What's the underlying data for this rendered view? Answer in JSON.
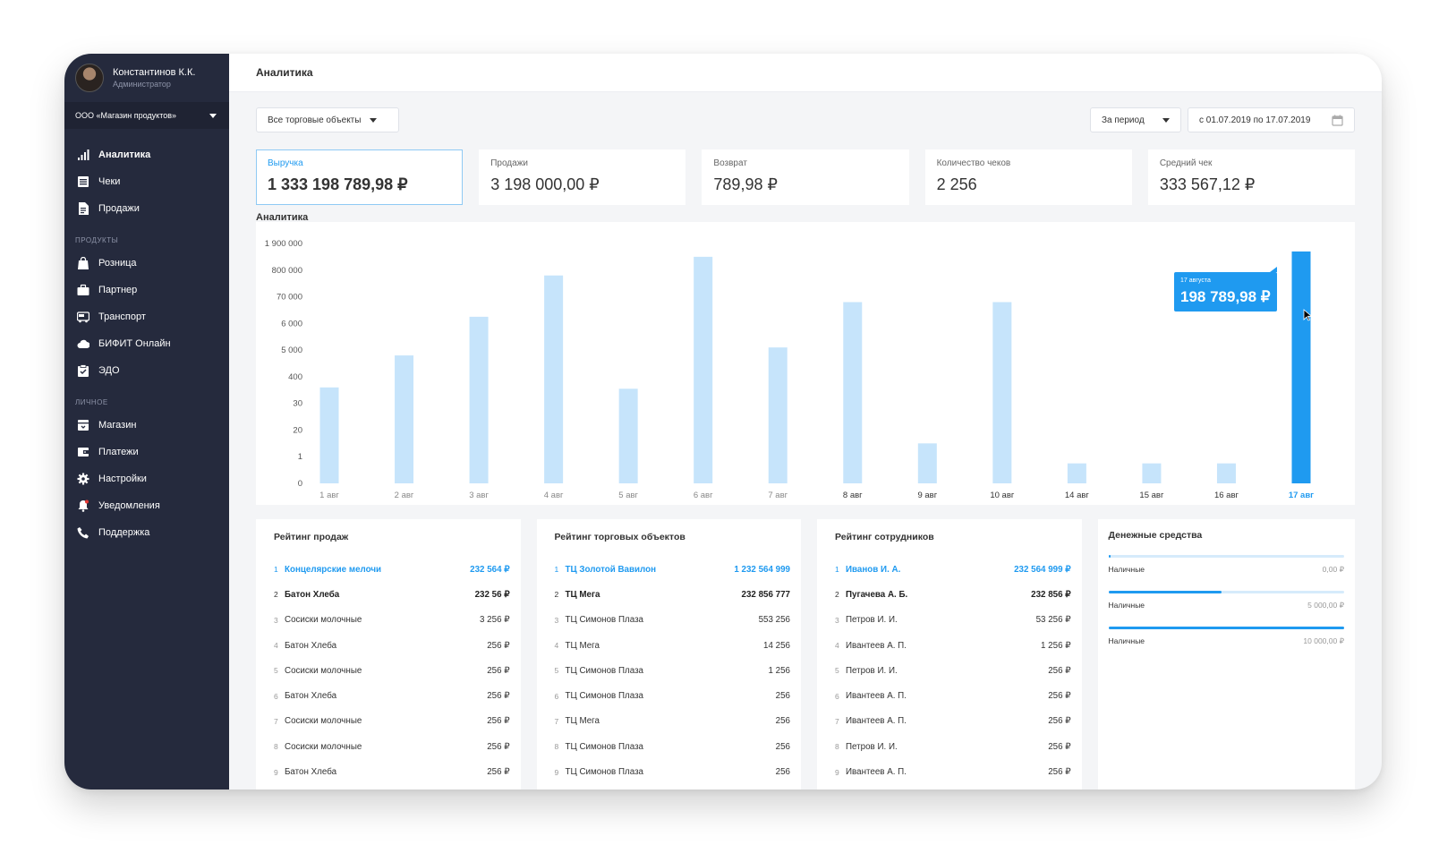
{
  "user": {
    "name": "Константинов К.К.",
    "role": "Администратор"
  },
  "org": "ООО «Магазин продуктов»",
  "nav_main": [
    {
      "label": "Аналитика",
      "icon": "bar-chart-icon"
    },
    {
      "label": "Чеки",
      "icon": "receipt-icon"
    },
    {
      "label": "Продажи",
      "icon": "document-icon"
    }
  ],
  "section_products": "ПРОДУКТЫ",
  "nav_products": [
    {
      "label": "Розница",
      "icon": "bag-icon"
    },
    {
      "label": "Партнер",
      "icon": "briefcase-icon"
    },
    {
      "label": "Транспорт",
      "icon": "bus-icon"
    },
    {
      "label": "БИФИТ Онлайн",
      "icon": "cloud-icon"
    },
    {
      "label": "ЭДО",
      "icon": "clipboard-check-icon"
    }
  ],
  "section_personal": "ЛИЧНОЕ",
  "nav_personal": [
    {
      "label": "Магазин",
      "icon": "store-icon"
    },
    {
      "label": "Платежи",
      "icon": "wallet-icon"
    },
    {
      "label": "Настройки",
      "icon": "gear-icon"
    },
    {
      "label": "Уведомления",
      "icon": "bell-icon"
    },
    {
      "label": "Поддержка",
      "icon": "phone-icon"
    }
  ],
  "header": {
    "title": "Аналитика"
  },
  "filters": {
    "objects": "Все торговые объекты",
    "period": "За период",
    "date_range": "с 01.07.2019 по 17.07.2019"
  },
  "kpis": [
    {
      "label": "Выручка",
      "value": "1 333 198 789,98 ₽"
    },
    {
      "label": "Продажи",
      "value": "3 198 000,00 ₽"
    },
    {
      "label": "Возврат",
      "value": "789,98 ₽"
    },
    {
      "label": "Количество чеков",
      "value": "2 256"
    },
    {
      "label": "Средний чек",
      "value": "333 567,12 ₽"
    }
  ],
  "chart_title": "Аналитика",
  "chart_data": {
    "type": "bar",
    "title": "Аналитика",
    "y_ticks": [
      "0",
      "1",
      "20",
      "30",
      "400",
      "5 000",
      "6 000",
      "70 000",
      "800 000",
      "1 900 000"
    ],
    "categories": [
      "1 авг",
      "2 авг",
      "3 авг",
      "4 авг",
      "5 авг",
      "6 авг",
      "7 авг",
      "8 авг",
      "9 авг",
      "10 авг",
      "14 авг",
      "15 авг",
      "16 авг",
      "17 авг"
    ],
    "values": [
      3.6,
      4.8,
      6.25,
      7.8,
      3.55,
      8.5,
      5.1,
      6.8,
      1.5,
      6.8,
      0.75,
      0.75,
      0.75,
      8.7
    ],
    "ylim": [
      0,
      9
    ],
    "highlight_index": 13,
    "bar_color": "#c6e4fb",
    "highlight_color": "#1f9af0",
    "tooltip": {
      "date": "17 августа",
      "value": "198 789,98 ₽"
    }
  },
  "ratings": [
    {
      "title": "Рейтинг продаж",
      "rows": [
        {
          "n": "1",
          "name": "Концелярские мелочи",
          "value": "232 564 ₽"
        },
        {
          "n": "2",
          "name": "Батон Хлеба",
          "value": "232 56 ₽"
        },
        {
          "n": "3",
          "name": "Сосиски молочные",
          "value": "3 256 ₽"
        },
        {
          "n": "4",
          "name": "Батон Хлеба",
          "value": "256 ₽"
        },
        {
          "n": "5",
          "name": "Сосиски молочные",
          "value": "256 ₽"
        },
        {
          "n": "6",
          "name": "Батон Хлеба",
          "value": "256 ₽"
        },
        {
          "n": "7",
          "name": "Сосиски молочные",
          "value": "256 ₽"
        },
        {
          "n": "8",
          "name": "Сосиски молочные",
          "value": "256 ₽"
        },
        {
          "n": "9",
          "name": "Батон Хлеба",
          "value": "256 ₽"
        }
      ]
    },
    {
      "title": "Рейтинг торговых объектов",
      "rows": [
        {
          "n": "1",
          "name": "ТЦ Золотой Вавилон",
          "value": "1 232 564 999"
        },
        {
          "n": "2",
          "name": "ТЦ Мега",
          "value": "232 856 777"
        },
        {
          "n": "3",
          "name": "ТЦ Симонов Плаза",
          "value": "553 256"
        },
        {
          "n": "4",
          "name": "ТЦ Мега",
          "value": "14 256"
        },
        {
          "n": "5",
          "name": "ТЦ Симонов Плаза",
          "value": "1 256"
        },
        {
          "n": "6",
          "name": "ТЦ Симонов Плаза",
          "value": "256"
        },
        {
          "n": "7",
          "name": "ТЦ Мега",
          "value": "256"
        },
        {
          "n": "8",
          "name": "ТЦ Симонов Плаза",
          "value": "256"
        },
        {
          "n": "9",
          "name": "ТЦ Симонов Плаза",
          "value": "256"
        }
      ]
    },
    {
      "title": "Рейтинг сотрудников",
      "rows": [
        {
          "n": "1",
          "name": "Иванов И. А.",
          "value": "232 564 999 ₽"
        },
        {
          "n": "2",
          "name": "Пугачева А. Б.",
          "value": "232 856 ₽"
        },
        {
          "n": "3",
          "name": "Петров И. И.",
          "value": "53 256 ₽"
        },
        {
          "n": "4",
          "name": "Ивантеев А. П.",
          "value": "1 256 ₽"
        },
        {
          "n": "5",
          "name": "Петров И. И.",
          "value": "256 ₽"
        },
        {
          "n": "6",
          "name": "Ивантеев А. П.",
          "value": "256 ₽"
        },
        {
          "n": "7",
          "name": "Ивантеев А. П.",
          "value": "256 ₽"
        },
        {
          "n": "8",
          "name": "Петров И. И.",
          "value": "256 ₽"
        },
        {
          "n": "9",
          "name": "Ивантеев А. П.",
          "value": "256 ₽"
        }
      ]
    }
  ],
  "cash": {
    "title": "Денежные средства",
    "items": [
      {
        "label": "Наличные",
        "value": "0,00 ₽",
        "fill": 0.0
      },
      {
        "label": "Наличные",
        "value": "5 000,00 ₽",
        "fill": 0.48
      },
      {
        "label": "Наличные",
        "value": "10 000,00 ₽",
        "fill": 1.0
      }
    ]
  }
}
